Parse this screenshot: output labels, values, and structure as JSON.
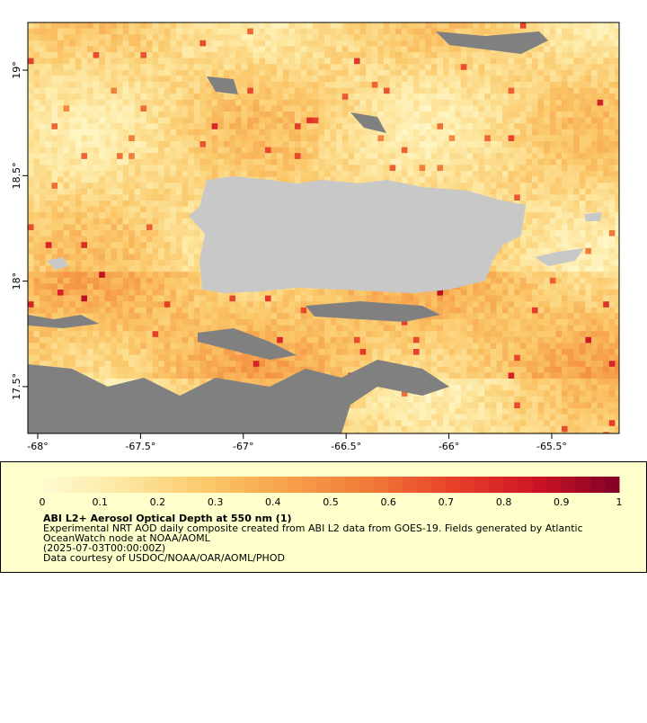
{
  "map": {
    "xlim": [
      -68.048,
      -65.172
    ],
    "ylim": [
      17.278,
      19.226
    ],
    "xticks": [
      {
        "value": -68,
        "label": "-68°"
      },
      {
        "value": -67.5,
        "label": "-67.5°"
      },
      {
        "value": -67,
        "label": "-67°"
      },
      {
        "value": -66.5,
        "label": "-66.5°"
      },
      {
        "value": -66,
        "label": "-66°"
      },
      {
        "value": -65.5,
        "label": "-65.5°"
      }
    ],
    "yticks": [
      {
        "value": 17.5,
        "label": "17.5°"
      },
      {
        "value": 18,
        "label": "18°"
      },
      {
        "value": 18.5,
        "label": "18.5°"
      },
      {
        "value": 19,
        "label": "19°"
      }
    ]
  },
  "colorbar": {
    "lim": [
      0,
      1
    ],
    "ticks": [
      0,
      0.1,
      0.2,
      0.3,
      0.4,
      0.5,
      0.6,
      0.7,
      0.8,
      0.9,
      1
    ],
    "colors": [
      "#fffbd2",
      "#fde7a0",
      "#fbc86a",
      "#f6a04a",
      "#f07838",
      "#e8402a",
      "#cc1424",
      "#800026"
    ]
  },
  "legend": {
    "title": "ABI L2+ Aerosol Optical Depth at 550 nm (1)",
    "lines": [
      "Experimental NRT AOD daily composite created from ABI L2 data from GOES-19. Fields generated by Atlantic",
      "OceanWatch node at NOAA/AOML",
      "(2025-07-03T00:00:00Z)",
      "Data courtesy of USDOC/NOAA/OAR/AOML/PHOD"
    ]
  }
}
